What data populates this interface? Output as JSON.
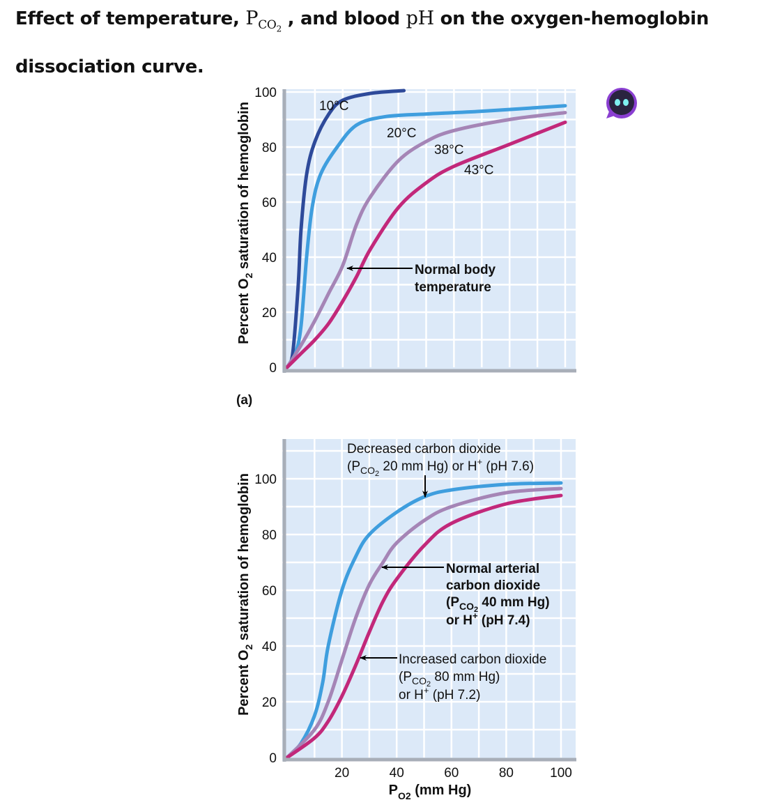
{
  "title": {
    "part1": "Effect of temperature, ",
    "p_symbol": "P",
    "p_sub": "CO",
    "p_sub2": "2",
    "part2": " , and blood ",
    "ph": "pH",
    "part3": " on the oxygen-hemoglobin dissociation curve."
  },
  "assistant_icon": "robot-assistant-icon",
  "chart_data": [
    {
      "type": "line",
      "panel_label": "(a)",
      "ylabel": {
        "pre": "Percent O",
        "sub": "2",
        "post": " saturation of hemoglobin"
      },
      "xlim": [
        0,
        100
      ],
      "ylim": [
        0,
        100
      ],
      "yticks": [
        0,
        20,
        40,
        60,
        80,
        100
      ],
      "grid": true,
      "series": [
        {
          "name": "10°C",
          "color": "#2e4a9a",
          "x": [
            0,
            2,
            4,
            5,
            7,
            10,
            15,
            20,
            30,
            42
          ],
          "y": [
            0,
            5,
            30,
            50,
            70,
            82,
            92,
            97,
            99.5,
            100.5
          ]
        },
        {
          "name": "20°C",
          "color": "#3f9ede",
          "x": [
            0,
            3,
            5,
            7,
            9,
            12,
            18,
            25,
            35,
            50,
            70,
            100
          ],
          "y": [
            0,
            5,
            15,
            40,
            58,
            70,
            80,
            88,
            91,
            92,
            93,
            95
          ]
        },
        {
          "name": "38°C",
          "color": "#a585b6",
          "x": [
            0,
            5,
            10,
            15,
            20,
            25,
            30,
            40,
            50,
            60,
            80,
            100
          ],
          "y": [
            0,
            8,
            17,
            27,
            37,
            52,
            62,
            75,
            82,
            86,
            90,
            92.5
          ]
        },
        {
          "name": "43°C",
          "color": "#c2287a",
          "x": [
            0,
            5,
            10,
            15,
            20,
            25,
            30,
            40,
            50,
            60,
            80,
            100
          ],
          "y": [
            0,
            5,
            10,
            16,
            24,
            33,
            43,
            58,
            67,
            73,
            81,
            89
          ]
        }
      ],
      "annotations": [
        {
          "lines": [
            "Normal body",
            "temperature"
          ]
        }
      ]
    },
    {
      "type": "line",
      "panel_label": "",
      "ylabel": {
        "pre": "Percent O",
        "sub": "2",
        "post": " saturation of hemoglobin"
      },
      "xlabel": {
        "pre": "P",
        "sub": "O2",
        "post": " (mm Hg)"
      },
      "xlim": [
        0,
        100
      ],
      "ylim": [
        0,
        100
      ],
      "xticks": [
        20,
        40,
        60,
        80,
        100
      ],
      "yticks": [
        0,
        20,
        40,
        60,
        80,
        100
      ],
      "grid": true,
      "series": [
        {
          "color": "#3f9ede",
          "x": [
            0,
            5,
            10,
            13,
            15,
            20,
            25,
            30,
            40,
            50,
            60,
            80,
            100
          ],
          "y": [
            0,
            5,
            15,
            27,
            40,
            60,
            72,
            80,
            88,
            93.5,
            96,
            98,
            98.5
          ]
        },
        {
          "color": "#a585b6",
          "x": [
            0,
            10,
            15,
            20,
            25,
            30,
            35,
            40,
            50,
            60,
            80,
            100
          ],
          "y": [
            0,
            10,
            20,
            35,
            50,
            62,
            70,
            77,
            85,
            90,
            95,
            96.5
          ]
        },
        {
          "color": "#c2287a",
          "x": [
            0,
            10,
            15,
            20,
            25,
            30,
            35,
            40,
            50,
            60,
            80,
            100
          ],
          "y": [
            0,
            7,
            13,
            22,
            33,
            45,
            56,
            64,
            76,
            84,
            91,
            94
          ]
        }
      ],
      "annotations": [
        {
          "line1": "Decreased carbon dioxide",
          "l2a": "(P",
          "l2sub": "CO",
          "l2sub2": "2",
          "l2b": " 20 mm Hg) or H",
          "l2sup": "+",
          "l2c": " (pH 7.6)"
        },
        {
          "line1": "Normal arterial",
          "line2": "carbon dioxide",
          "l3a": "(P",
          "l3sub": "CO",
          "l3sub2": "2",
          "l3b": " 40 mm Hg)",
          "l4a": "or H",
          "l4sup": "+",
          "l4b": " (pH 7.4)"
        },
        {
          "line1": "Increased carbon dioxide",
          "l2a": "(P",
          "l2sub": "CO",
          "l2sub2": "2",
          "l2b": " 80 mm Hg)",
          "l3a": "or H",
          "l3sup": "+",
          "l3b": " (pH 7.2)"
        }
      ]
    }
  ]
}
